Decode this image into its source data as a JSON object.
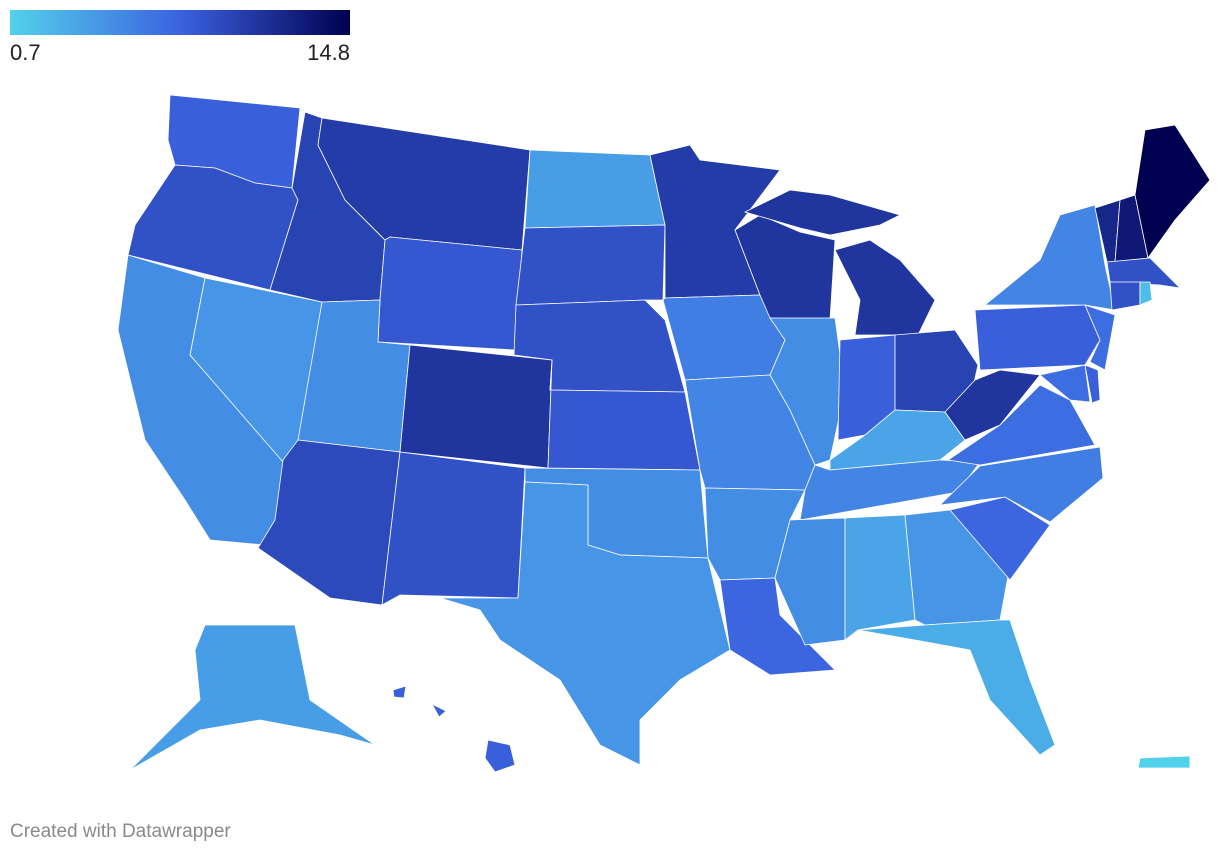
{
  "map": {
    "legend": {
      "min": 0.7,
      "max": 14.8
    },
    "colorscale": [
      "#52d1ec",
      "#3b62e0",
      "#000050"
    ],
    "values": [
      8,
      9,
      5,
      4.5,
      10,
      10.5,
      8.5,
      5,
      11,
      9.5,
      9,
      4,
      9,
      9,
      8.5,
      5,
      4.5,
      10.5,
      6,
      5.5,
      5,
      7.5,
      11,
      11,
      5,
      8,
      10,
      3.5,
      5.5,
      5,
      3.5,
      4.5,
      3,
      7.5,
      6,
      7,
      11,
      8,
      5.5,
      7,
      7,
      8,
      12,
      13,
      14.8,
      9,
      9,
      2,
      4,
      8,
      0.7
    ]
  },
  "footer": "Created with Datawrapper"
}
